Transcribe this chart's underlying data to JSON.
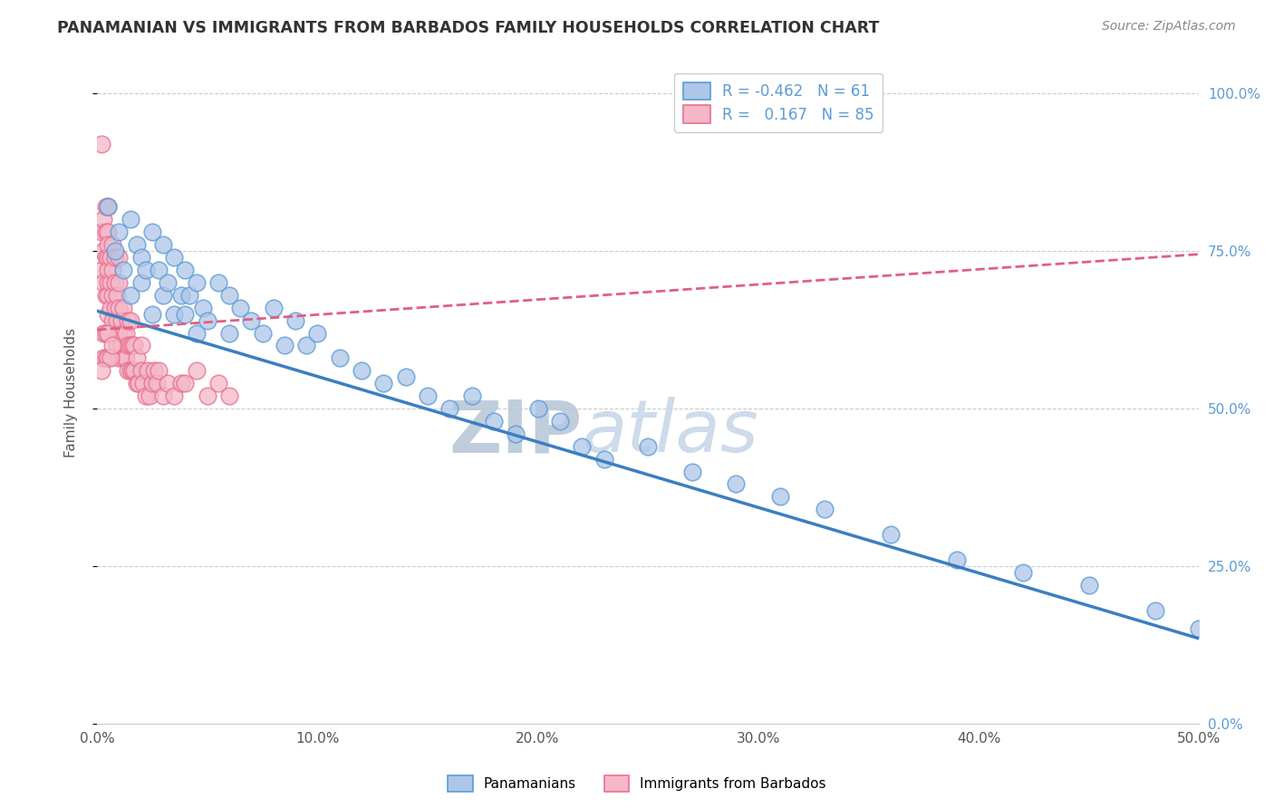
{
  "title": "PANAMANIAN VS IMMIGRANTS FROM BARBADOS FAMILY HOUSEHOLDS CORRELATION CHART",
  "source_text": "Source: ZipAtlas.com",
  "ylabel": "Family Households",
  "legend_labels": [
    "Panamanians",
    "Immigrants from Barbados"
  ],
  "blue_R": -0.462,
  "blue_N": 61,
  "pink_R": 0.167,
  "pink_N": 85,
  "blue_color": "#aec6e8",
  "pink_color": "#f4b8c8",
  "blue_edge_color": "#5b9bd5",
  "pink_edge_color": "#e87090",
  "blue_line_color": "#3a7fc1",
  "pink_line_color": "#e06080",
  "xlim": [
    0.0,
    0.5
  ],
  "ylim": [
    0.0,
    1.05
  ],
  "yticks": [
    0.0,
    0.25,
    0.5,
    0.75,
    1.0
  ],
  "ytick_labels_right": [
    "0.0%",
    "25.0%",
    "50.0%",
    "75.0%",
    "100.0%"
  ],
  "xticks": [
    0.0,
    0.1,
    0.2,
    0.3,
    0.4,
    0.5
  ],
  "xtick_labels": [
    "0.0%",
    "10.0%",
    "20.0%",
    "30.0%",
    "40.0%",
    "50.0%"
  ],
  "watermark_zip": "ZIP",
  "watermark_atlas": "atlas",
  "watermark_color": "#c8d8ea",
  "background_color": "#ffffff",
  "grid_color": "#cccccc",
  "blue_scatter_x": [
    0.005,
    0.008,
    0.01,
    0.012,
    0.015,
    0.015,
    0.018,
    0.02,
    0.02,
    0.022,
    0.025,
    0.025,
    0.028,
    0.03,
    0.03,
    0.032,
    0.035,
    0.035,
    0.038,
    0.04,
    0.04,
    0.042,
    0.045,
    0.045,
    0.048,
    0.05,
    0.055,
    0.06,
    0.06,
    0.065,
    0.07,
    0.075,
    0.08,
    0.085,
    0.09,
    0.095,
    0.1,
    0.11,
    0.12,
    0.13,
    0.14,
    0.15,
    0.16,
    0.17,
    0.18,
    0.19,
    0.2,
    0.21,
    0.22,
    0.23,
    0.25,
    0.27,
    0.29,
    0.31,
    0.33,
    0.36,
    0.39,
    0.42,
    0.45,
    0.48,
    0.5
  ],
  "blue_scatter_y": [
    0.82,
    0.75,
    0.78,
    0.72,
    0.8,
    0.68,
    0.76,
    0.74,
    0.7,
    0.72,
    0.78,
    0.65,
    0.72,
    0.76,
    0.68,
    0.7,
    0.74,
    0.65,
    0.68,
    0.72,
    0.65,
    0.68,
    0.7,
    0.62,
    0.66,
    0.64,
    0.7,
    0.68,
    0.62,
    0.66,
    0.64,
    0.62,
    0.66,
    0.6,
    0.64,
    0.6,
    0.62,
    0.58,
    0.56,
    0.54,
    0.55,
    0.52,
    0.5,
    0.52,
    0.48,
    0.46,
    0.5,
    0.48,
    0.44,
    0.42,
    0.44,
    0.4,
    0.38,
    0.36,
    0.34,
    0.3,
    0.26,
    0.24,
    0.22,
    0.18,
    0.15
  ],
  "pink_scatter_x": [
    0.002,
    0.002,
    0.003,
    0.003,
    0.003,
    0.004,
    0.004,
    0.004,
    0.004,
    0.005,
    0.005,
    0.005,
    0.005,
    0.005,
    0.005,
    0.005,
    0.005,
    0.006,
    0.006,
    0.006,
    0.007,
    0.007,
    0.007,
    0.007,
    0.008,
    0.008,
    0.008,
    0.008,
    0.009,
    0.009,
    0.009,
    0.01,
    0.01,
    0.01,
    0.01,
    0.01,
    0.011,
    0.011,
    0.012,
    0.012,
    0.012,
    0.013,
    0.013,
    0.014,
    0.014,
    0.014,
    0.015,
    0.015,
    0.015,
    0.016,
    0.016,
    0.017,
    0.017,
    0.018,
    0.018,
    0.019,
    0.02,
    0.02,
    0.021,
    0.022,
    0.023,
    0.024,
    0.025,
    0.026,
    0.027,
    0.028,
    0.03,
    0.032,
    0.035,
    0.038,
    0.04,
    0.045,
    0.05,
    0.055,
    0.06,
    0.003,
    0.003,
    0.004,
    0.004,
    0.005,
    0.005,
    0.006,
    0.007,
    0.002,
    0.002
  ],
  "pink_scatter_y": [
    0.72,
    0.78,
    0.7,
    0.75,
    0.8,
    0.68,
    0.74,
    0.78,
    0.82,
    0.65,
    0.7,
    0.74,
    0.78,
    0.82,
    0.68,
    0.72,
    0.76,
    0.66,
    0.7,
    0.74,
    0.64,
    0.68,
    0.72,
    0.76,
    0.62,
    0.66,
    0.7,
    0.74,
    0.6,
    0.64,
    0.68,
    0.58,
    0.62,
    0.66,
    0.7,
    0.74,
    0.6,
    0.64,
    0.58,
    0.62,
    0.66,
    0.58,
    0.62,
    0.56,
    0.6,
    0.64,
    0.56,
    0.6,
    0.64,
    0.56,
    0.6,
    0.56,
    0.6,
    0.54,
    0.58,
    0.54,
    0.56,
    0.6,
    0.54,
    0.52,
    0.56,
    0.52,
    0.54,
    0.56,
    0.54,
    0.56,
    0.52,
    0.54,
    0.52,
    0.54,
    0.54,
    0.56,
    0.52,
    0.54,
    0.52,
    0.58,
    0.62,
    0.58,
    0.62,
    0.58,
    0.62,
    0.58,
    0.6,
    0.92,
    0.56
  ],
  "blue_line_x0": 0.0,
  "blue_line_y0": 0.655,
  "blue_line_x1": 0.5,
  "blue_line_y1": 0.135,
  "pink_line_x0": 0.0,
  "pink_line_y0": 0.625,
  "pink_line_x1": 0.5,
  "pink_line_y1": 0.745
}
